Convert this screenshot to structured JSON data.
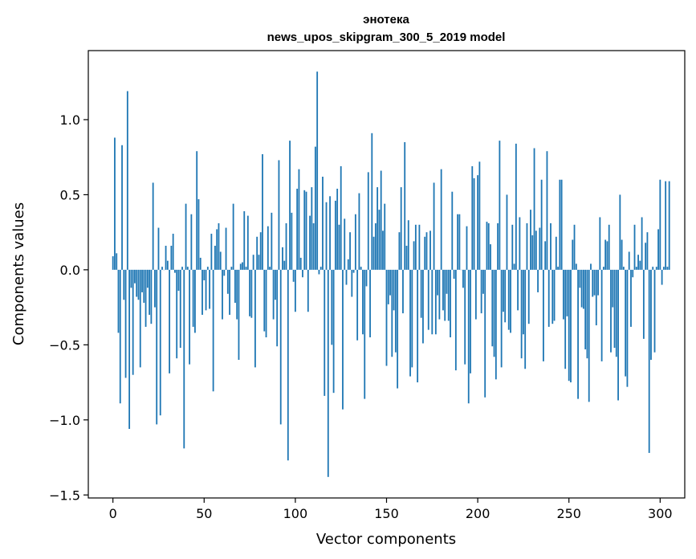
{
  "chart_data": {
    "type": "bar",
    "title": "энотека",
    "subtitle": "news_upos_skipgram_300_5_2019 model",
    "xlabel": "Vector components",
    "ylabel": "Components values",
    "xlim": [
      -13.5,
      313.5
    ],
    "ylim": [
      -1.52,
      1.46
    ],
    "xticks": [
      0,
      50,
      100,
      150,
      200,
      250,
      300
    ],
    "xtick_labels": [
      "0",
      "50",
      "100",
      "150",
      "200",
      "250",
      "300"
    ],
    "yticks": [
      1.0,
      0.5,
      0.0,
      -0.5,
      -1.0,
      -1.5
    ],
    "ytick_labels": [
      "1.0",
      "0.5",
      "0.0",
      "−0.5",
      "−1.0",
      "−1.5"
    ],
    "color": "#1f77b4",
    "grid": false,
    "values": [
      0.09,
      0.88,
      0.11,
      -0.42,
      -0.89,
      0.83,
      -0.2,
      -0.72,
      1.19,
      -1.06,
      -0.12,
      -0.7,
      -0.09,
      -0.18,
      -0.2,
      -0.65,
      -0.15,
      -0.22,
      -0.38,
      -0.12,
      -0.3,
      -0.36,
      0.58,
      -0.25,
      -1.03,
      0.28,
      -0.97,
      0.02,
      0.0,
      0.16,
      0.06,
      -0.69,
      0.16,
      0.24,
      -0.02,
      -0.59,
      -0.14,
      -0.52,
      0.02,
      -1.19,
      0.44,
      0.02,
      -0.63,
      0.37,
      -0.38,
      -0.42,
      0.79,
      0.47,
      0.08,
      -0.3,
      -0.07,
      -0.27,
      0.02,
      -0.26,
      0.24,
      -0.81,
      0.16,
      0.27,
      0.31,
      0.12,
      -0.33,
      -0.04,
      0.28,
      -0.16,
      -0.3,
      0.02,
      0.44,
      -0.22,
      -0.33,
      -0.6,
      0.04,
      0.05,
      0.39,
      0.02,
      0.36,
      -0.31,
      -0.32,
      0.1,
      -0.65,
      0.22,
      0.1,
      0.25,
      0.77,
      -0.41,
      -0.45,
      0.29,
      0.02,
      0.38,
      -0.33,
      -0.2,
      -0.51,
      0.73,
      -1.03,
      0.15,
      0.06,
      0.31,
      -1.27,
      0.86,
      0.38,
      -0.08,
      -0.28,
      0.54,
      0.67,
      0.08,
      -0.05,
      0.53,
      0.52,
      -0.28,
      0.36,
      0.55,
      0.31,
      0.82,
      1.32,
      -0.03,
      0.02,
      0.62,
      -0.84,
      0.45,
      -1.38,
      0.49,
      -0.5,
      -0.82,
      0.46,
      0.54,
      0.3,
      0.69,
      -0.93,
      0.34,
      -0.1,
      0.07,
      0.25,
      -0.18,
      -0.02,
      0.37,
      -0.47,
      0.51,
      0.02,
      -0.43,
      -0.86,
      -0.11,
      0.65,
      -0.45,
      0.91,
      0.22,
      0.31,
      0.55,
      0.4,
      0.66,
      0.26,
      0.44,
      -0.64,
      -0.23,
      -0.17,
      -0.58,
      -0.27,
      -0.55,
      -0.79,
      0.25,
      0.55,
      -0.29,
      0.85,
      0.16,
      0.33,
      -0.71,
      -0.65,
      0.19,
      0.3,
      -0.75,
      0.3,
      -0.32,
      -0.49,
      0.22,
      0.25,
      -0.4,
      0.26,
      -0.43,
      0.58,
      -0.43,
      -0.17,
      -0.33,
      0.67,
      -0.27,
      -0.34,
      -0.16,
      -0.34,
      -0.45,
      0.52,
      -0.06,
      -0.67,
      0.37,
      0.37,
      0.0,
      -0.12,
      -0.63,
      0.29,
      -0.89,
      -0.69,
      0.69,
      0.61,
      -0.33,
      0.63,
      0.72,
      -0.29,
      -0.16,
      -0.85,
      0.32,
      0.31,
      0.17,
      -0.51,
      -0.58,
      -0.73,
      0.31,
      0.86,
      -0.65,
      -0.28,
      -0.35,
      0.5,
      -0.4,
      -0.42,
      0.3,
      0.04,
      0.84,
      -0.27,
      0.35,
      -0.59,
      -0.43,
      -0.66,
      0.31,
      -0.36,
      0.4,
      0.23,
      0.81,
      0.26,
      -0.15,
      0.28,
      0.6,
      -0.61,
      0.19,
      0.79,
      -0.38,
      0.31,
      -0.36,
      -0.34,
      0.22,
      0.02,
      0.6,
      0.6,
      -0.33,
      -0.66,
      -0.31,
      -0.74,
      -0.75,
      0.2,
      0.3,
      0.04,
      -0.86,
      -0.12,
      -0.25,
      -0.26,
      -0.53,
      -0.59,
      -0.88,
      0.04,
      -0.18,
      -0.17,
      -0.37,
      -0.17,
      0.35,
      -0.61,
      0.02,
      0.2,
      0.19,
      0.3,
      -0.55,
      -0.25,
      -0.52,
      -0.58,
      -0.87,
      0.5,
      0.2,
      0.02,
      -0.71,
      -0.78,
      0.12,
      -0.38,
      -0.05,
      0.3,
      0.02,
      0.1,
      0.06,
      0.35,
      -0.46,
      0.18,
      0.25,
      -1.22,
      -0.6,
      0.02,
      -0.55,
      0.02,
      0.27,
      0.6,
      -0.1,
      0.02,
      0.59,
      0.02,
      0.59
    ]
  }
}
